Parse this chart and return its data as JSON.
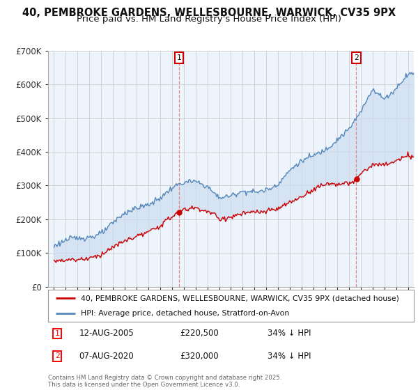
{
  "title": "40, PEMBROKE GARDENS, WELLESBOURNE, WARWICK, CV35 9PX",
  "subtitle": "Price paid vs. HM Land Registry's House Price Index (HPI)",
  "red_label": "40, PEMBROKE GARDENS, WELLESBOURNE, WARWICK, CV35 9PX (detached house)",
  "blue_label": "HPI: Average price, detached house, Stratford-on-Avon",
  "footnote": "Contains HM Land Registry data © Crown copyright and database right 2025.\nThis data is licensed under the Open Government Licence v3.0.",
  "marker1": {
    "label": "1",
    "date": "12-AUG-2005",
    "price": "£220,500",
    "hpi": "34% ↓ HPI"
  },
  "marker2": {
    "label": "2",
    "date": "07-AUG-2020",
    "price": "£320,000",
    "hpi": "34% ↓ HPI"
  },
  "marker1_x": 2005.62,
  "marker2_x": 2020.62,
  "marker1_y_red": 220500,
  "marker2_y_red": 320000,
  "ylim": [
    0,
    700000
  ],
  "xlim": [
    1994.5,
    2025.5
  ],
  "background_color": "#ffffff",
  "plot_bg_color": "#eef4fc",
  "red_color": "#cc0000",
  "blue_color": "#5588bb",
  "fill_color": "#ccddf0",
  "grid_color": "#cccccc",
  "vline_color": "#dd8888",
  "title_fontsize": 10.5,
  "subtitle_fontsize": 9.5
}
